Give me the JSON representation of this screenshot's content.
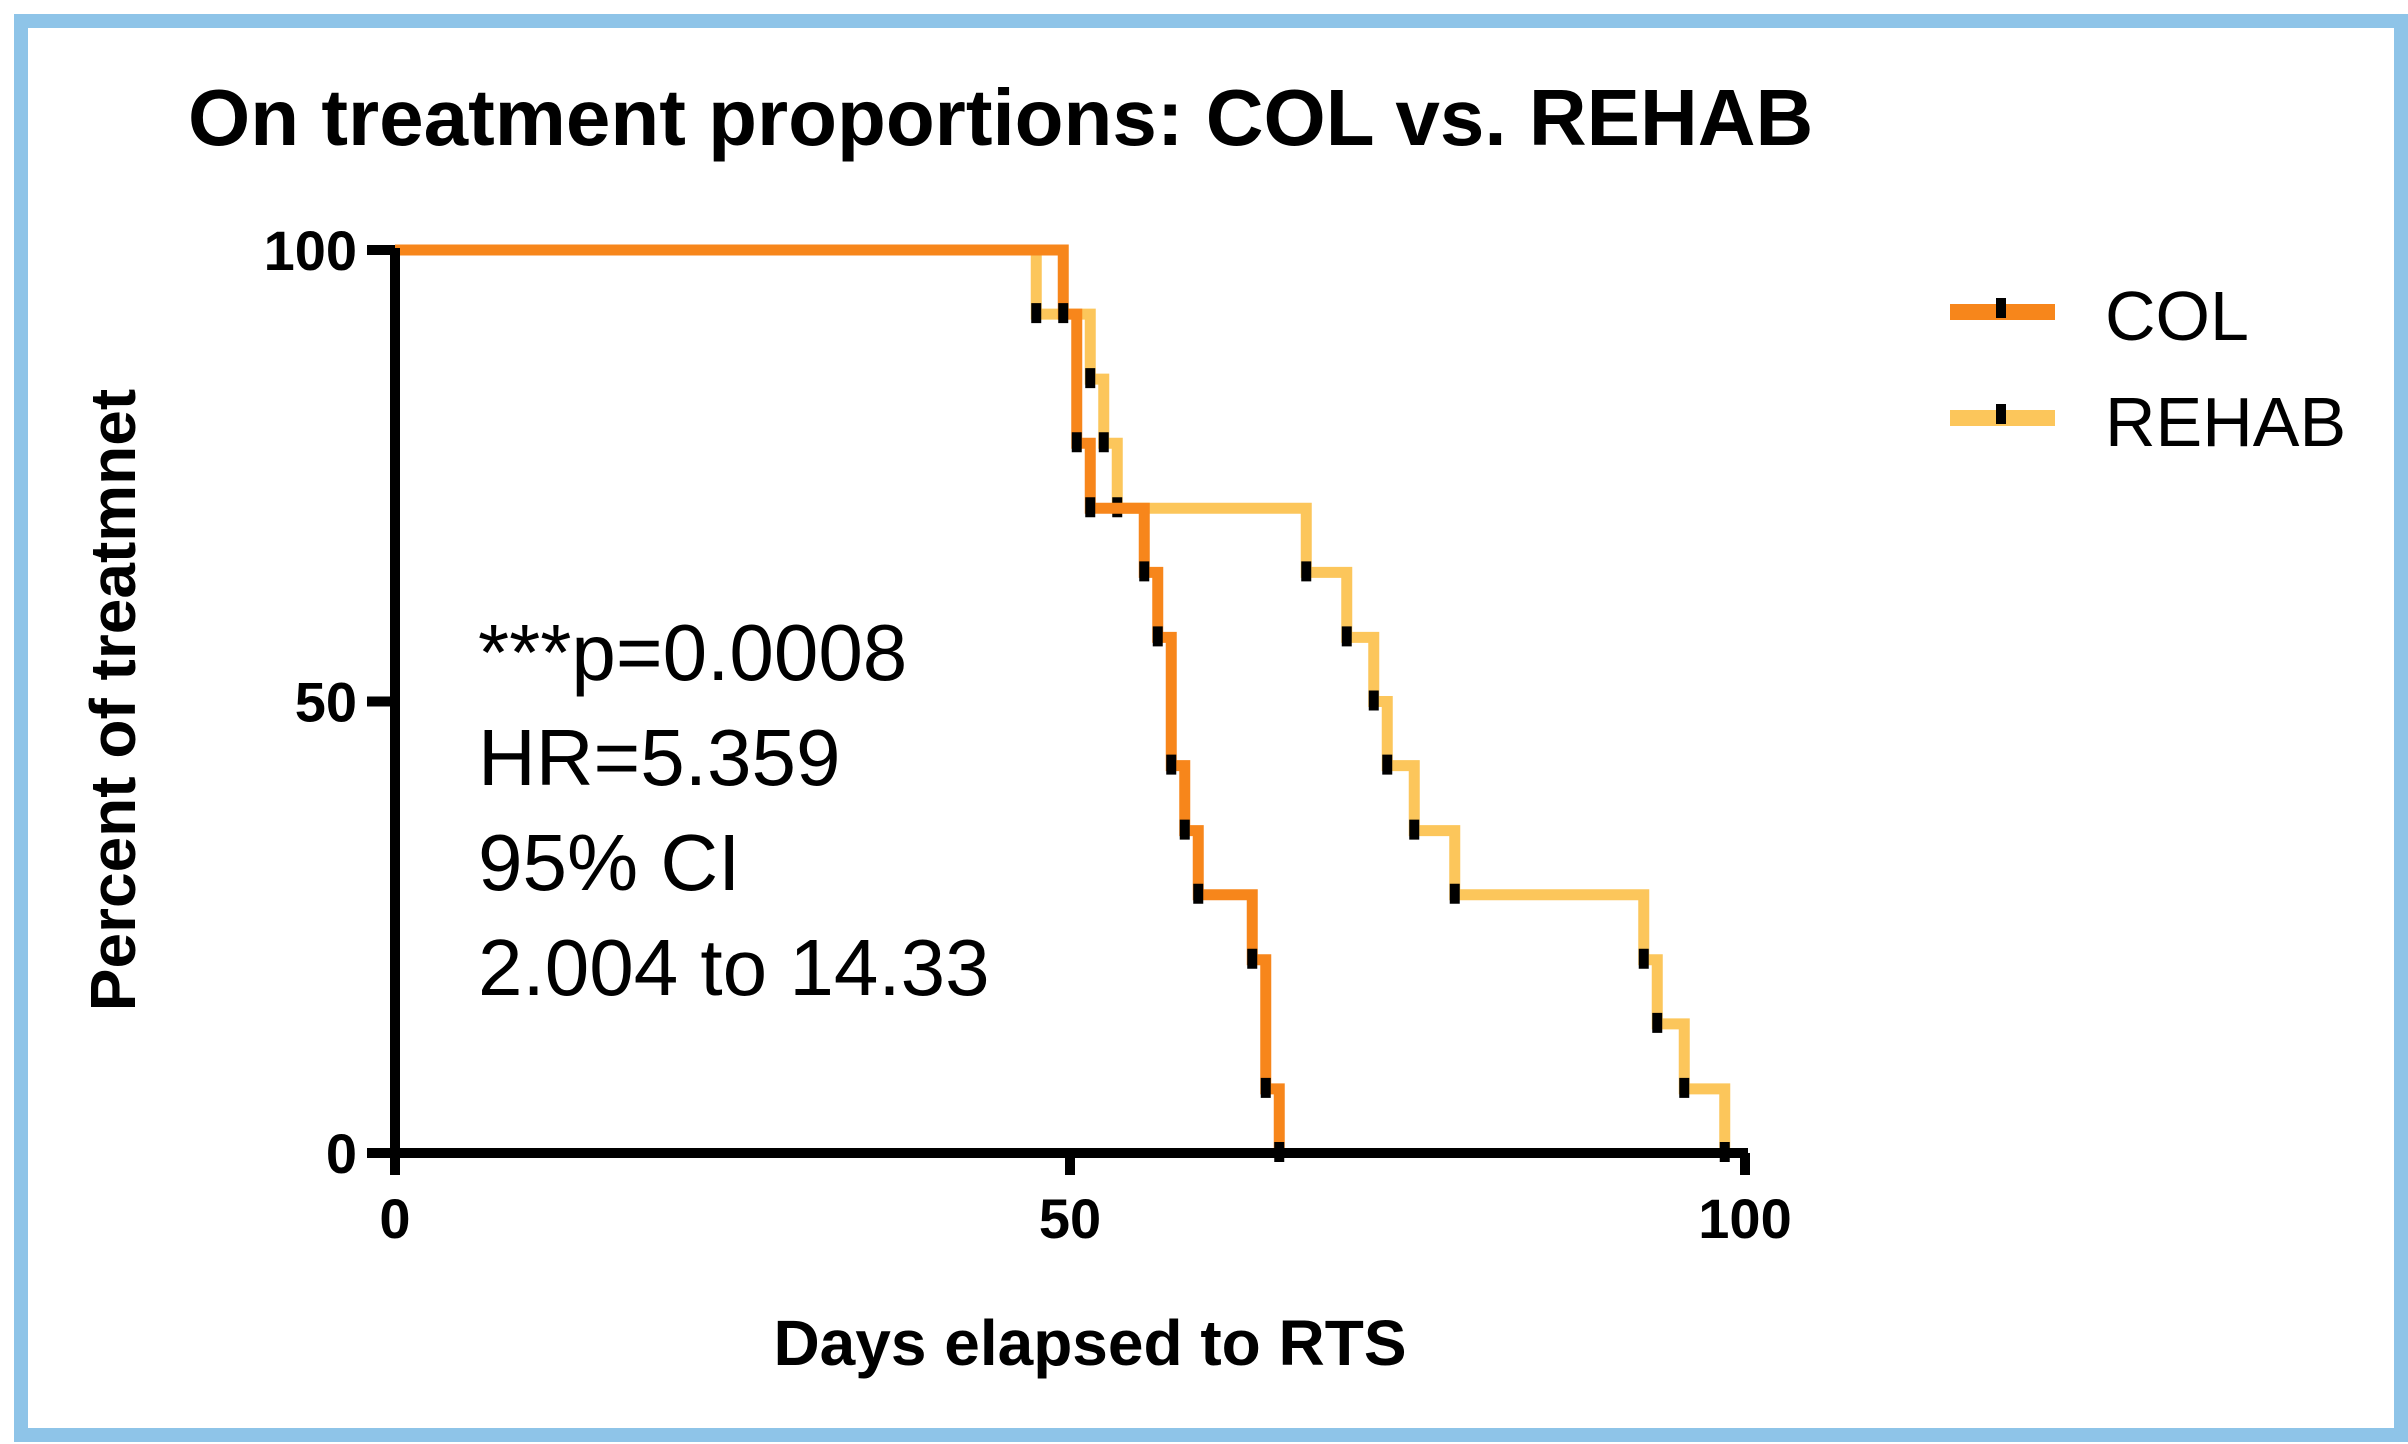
{
  "chart_data": {
    "type": "line",
    "subtype": "kaplan-meier step",
    "title": "On treatment proportions: COL vs. REHAB",
    "xlabel": "Days elapsed to RTS",
    "ylabel": "Percent of treatmnet",
    "xlim": [
      0,
      100
    ],
    "ylim": [
      0,
      100
    ],
    "x_ticks": [
      0,
      50,
      100
    ],
    "y_ticks": [
      0,
      50,
      100
    ],
    "legend_position": "top-right",
    "annotations": [
      "***p=0.0008",
      "HR=5.359",
      "95% CI",
      "2.004 to 14.33"
    ],
    "series": [
      {
        "name": "COL",
        "color": "#f7861b",
        "steps": [
          {
            "x": 0,
            "y": 100
          },
          {
            "x": 49.5,
            "y": 92.9
          },
          {
            "x": 50.5,
            "y": 78.6
          },
          {
            "x": 51.5,
            "y": 71.4
          },
          {
            "x": 55.5,
            "y": 64.3
          },
          {
            "x": 56.5,
            "y": 57.1
          },
          {
            "x": 57.5,
            "y": 42.9
          },
          {
            "x": 58.5,
            "y": 35.7
          },
          {
            "x": 59.5,
            "y": 28.6
          },
          {
            "x": 63.5,
            "y": 21.4
          },
          {
            "x": 64.5,
            "y": 7.1
          },
          {
            "x": 65.5,
            "y": 0
          }
        ]
      },
      {
        "name": "REHAB",
        "color": "#fcc65b",
        "steps": [
          {
            "x": 0,
            "y": 100
          },
          {
            "x": 47.5,
            "y": 92.9
          },
          {
            "x": 51.5,
            "y": 85.7
          },
          {
            "x": 52.5,
            "y": 78.6
          },
          {
            "x": 53.5,
            "y": 71.4
          },
          {
            "x": 67.5,
            "y": 64.3
          },
          {
            "x": 70.5,
            "y": 57.1
          },
          {
            "x": 72.5,
            "y": 50
          },
          {
            "x": 73.5,
            "y": 42.9
          },
          {
            "x": 75.5,
            "y": 35.7
          },
          {
            "x": 78.5,
            "y": 28.6
          },
          {
            "x": 92.5,
            "y": 21.4
          },
          {
            "x": 93.5,
            "y": 14.3
          },
          {
            "x": 95.5,
            "y": 7.1
          },
          {
            "x": 98.5,
            "y": 0
          }
        ]
      }
    ]
  }
}
